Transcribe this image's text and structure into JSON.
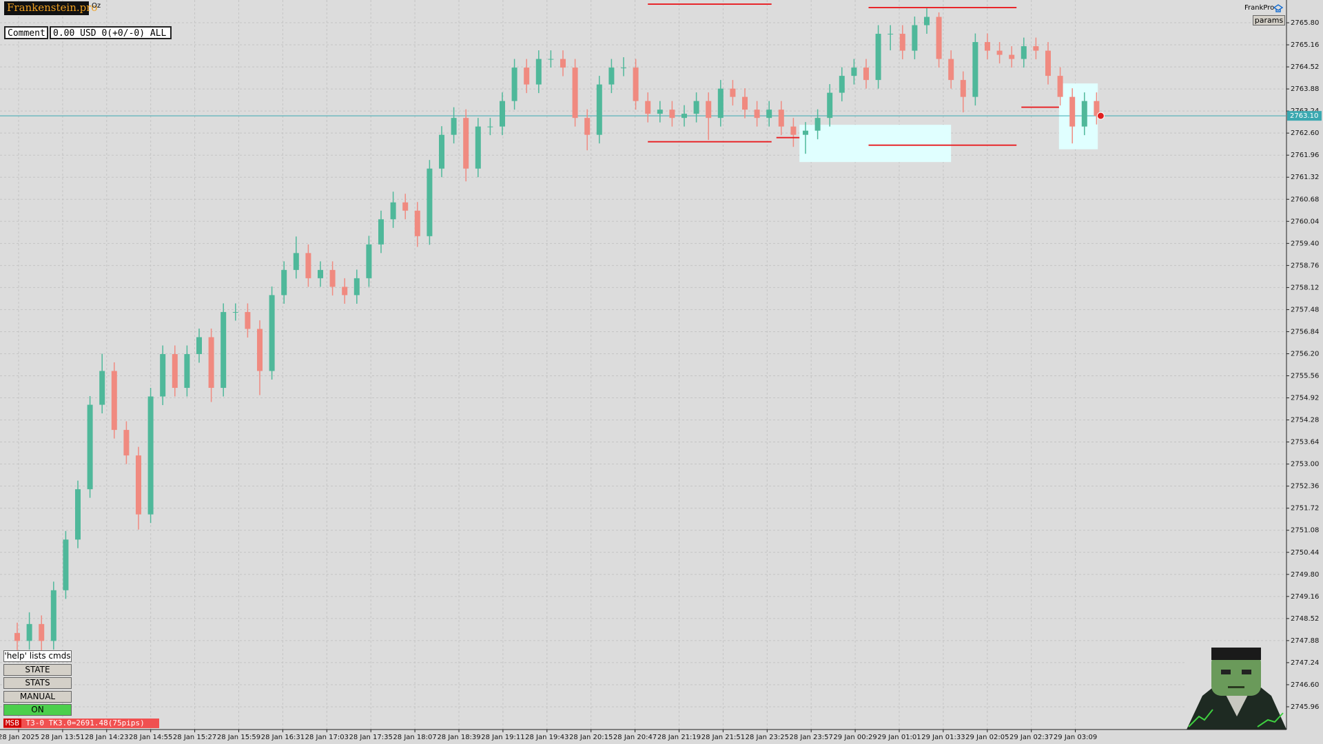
{
  "ui": {
    "logo": "Frankenstein.pro",
    "symbol_note": "Oz",
    "comment_label": "Comment",
    "account": "0.00 USD 0(+0/-0) ALL",
    "brand": "FrankPro",
    "params_button": "params",
    "help_hint": "'help' lists cmds",
    "buttons": [
      "STATE",
      "STATS",
      "MANUAL",
      "ON"
    ],
    "status_tag": "MSB",
    "status": "T3-0  TK3.0=2691.48(75pips)"
  },
  "chart_data": {
    "type": "candlestick",
    "up_color": "#4fb89a",
    "down_color": "#f08a80",
    "level_color": "#e8262a",
    "zone_color": "#e0ffff",
    "price_color": "#3aa8b0",
    "grid": true,
    "ylim": [
      2745.3,
      2766.46
    ],
    "yticks": [
      {
        "value": 2765.8,
        "label": "2765.80"
      },
      2765.16,
      2764.52,
      2763.88,
      2763.24,
      {
        "value": 2762.6,
        "label": "2762.60"
      },
      2761.96,
      2761.32,
      2760.68,
      2760.04,
      {
        "value": 2759.4,
        "label": "2759.40"
      },
      2758.76,
      2758.12,
      2757.48,
      2756.84,
      {
        "value": 2756.2,
        "label": "2756.20"
      },
      2755.56,
      2754.92,
      2754.28,
      2753.64,
      {
        "value": 2753.0,
        "label": "2753.00"
      },
      2752.36,
      2751.72,
      2751.08,
      2750.44,
      {
        "value": 2749.8,
        "label": "2749.80"
      },
      2749.16,
      2748.52,
      2747.88,
      2747.24,
      {
        "value": 2746.6,
        "label": "2746.60"
      },
      2745.96
    ],
    "x_labels": [
      "28 Jan 2025",
      "28 Jan 13:51",
      "28 Jan 14:23",
      "28 Jan 14:55",
      "28 Jan 15:27",
      "28 Jan 15:59",
      "28 Jan 16:31",
      "28 Jan 17:03",
      "28 Jan 17:35",
      "28 Jan 18:07",
      "28 Jan 18:39",
      "28 Jan 19:11",
      "28 Jan 19:43",
      "28 Jan 20:15",
      "28 Jan 20:47",
      "28 Jan 21:19",
      "28 Jan 21:51",
      "28 Jan 23:25",
      "28 Jan 23:57",
      "29 Jan 00:29",
      "29 Jan 01:01",
      "29 Jan 01:33",
      "29 Jan 02:05",
      "29 Jan 02:37",
      "29 Jan 03:09"
    ],
    "current_price": {
      "value": 2763.1,
      "label": "2763.10"
    },
    "ohlc": [
      [
        2748.1,
        2748.4,
        2747.6,
        2747.87
      ],
      [
        2747.87,
        2748.7,
        2747.62,
        2748.36
      ],
      [
        2748.36,
        2748.61,
        2747.4,
        2747.87
      ],
      [
        2747.87,
        2749.59,
        2747.62,
        2749.34
      ],
      [
        2749.34,
        2751.06,
        2749.09,
        2750.81
      ],
      [
        2750.81,
        2752.52,
        2750.56,
        2752.27
      ],
      [
        2752.27,
        2754.97,
        2752.02,
        2754.72
      ],
      [
        2754.72,
        2756.2,
        2754.47,
        2755.7
      ],
      [
        2755.7,
        2755.95,
        2753.74,
        2753.99
      ],
      [
        2753.99,
        2754.24,
        2753.0,
        2753.25
      ],
      [
        2753.25,
        2753.5,
        2751.1,
        2751.54
      ],
      [
        2751.54,
        2755.21,
        2751.29,
        2754.96
      ],
      [
        2754.96,
        2756.44,
        2754.71,
        2756.19
      ],
      [
        2756.19,
        2756.44,
        2754.96,
        2755.21
      ],
      [
        2755.21,
        2756.44,
        2754.96,
        2756.19
      ],
      [
        2756.19,
        2756.93,
        2755.94,
        2756.68
      ],
      [
        2756.68,
        2756.93,
        2754.8,
        2755.21
      ],
      [
        2755.21,
        2757.66,
        2754.96,
        2757.41
      ],
      [
        2757.41,
        2757.66,
        2757.16,
        2757.41
      ],
      [
        2757.41,
        2757.66,
        2756.67,
        2756.92
      ],
      [
        2756.92,
        2757.17,
        2755.0,
        2755.7
      ],
      [
        2755.7,
        2758.15,
        2755.45,
        2757.9
      ],
      [
        2757.9,
        2758.88,
        2757.65,
        2758.63
      ],
      [
        2758.63,
        2759.6,
        2758.38,
        2759.12
      ],
      [
        2759.12,
        2759.37,
        2758.14,
        2758.39
      ],
      [
        2758.39,
        2758.88,
        2758.14,
        2758.63
      ],
      [
        2758.63,
        2758.88,
        2757.89,
        2758.14
      ],
      [
        2758.14,
        2758.39,
        2757.65,
        2757.9
      ],
      [
        2757.9,
        2758.64,
        2757.65,
        2758.39
      ],
      [
        2758.39,
        2759.62,
        2758.14,
        2759.37
      ],
      [
        2759.37,
        2760.35,
        2759.12,
        2760.1
      ],
      [
        2760.1,
        2760.9,
        2759.85,
        2760.59
      ],
      [
        2760.59,
        2760.84,
        2760.1,
        2760.35
      ],
      [
        2760.35,
        2760.6,
        2759.3,
        2759.61
      ],
      [
        2759.61,
        2761.82,
        2759.36,
        2761.57
      ],
      [
        2761.57,
        2762.8,
        2761.32,
        2762.55
      ],
      [
        2762.55,
        2763.35,
        2762.3,
        2763.04
      ],
      [
        2763.04,
        2763.29,
        2761.2,
        2761.57
      ],
      [
        2761.57,
        2763.04,
        2761.32,
        2762.79
      ],
      [
        2762.79,
        2763.04,
        2762.54,
        2762.79
      ],
      [
        2762.79,
        2763.78,
        2762.54,
        2763.53
      ],
      [
        2763.53,
        2764.75,
        2763.28,
        2764.5
      ],
      [
        2764.5,
        2764.75,
        2763.76,
        2764.01
      ],
      [
        2764.01,
        2765.0,
        2763.76,
        2764.75
      ],
      [
        2764.75,
        2765.0,
        2764.5,
        2764.75
      ],
      [
        2764.75,
        2765.0,
        2764.25,
        2764.5
      ],
      [
        2764.5,
        2764.75,
        2762.79,
        2763.04
      ],
      [
        2763.04,
        2763.29,
        2762.1,
        2762.55
      ],
      [
        2762.55,
        2764.26,
        2762.3,
        2764.01
      ],
      [
        2764.01,
        2764.75,
        2763.76,
        2764.5
      ],
      [
        2764.5,
        2764.8,
        2764.25,
        2764.5
      ],
      [
        2764.5,
        2764.75,
        2763.28,
        2763.53
      ],
      [
        2763.53,
        2763.78,
        2762.91,
        2763.16
      ],
      [
        2763.16,
        2763.53,
        2762.91,
        2763.28
      ],
      [
        2763.28,
        2763.53,
        2762.79,
        2763.04
      ],
      [
        2763.04,
        2763.41,
        2762.79,
        2763.16
      ],
      [
        2763.16,
        2763.78,
        2762.91,
        2763.53
      ],
      [
        2763.53,
        2763.78,
        2762.4,
        2763.04
      ],
      [
        2763.04,
        2764.14,
        2762.79,
        2763.89
      ],
      [
        2763.89,
        2764.14,
        2763.4,
        2763.65
      ],
      [
        2763.65,
        2763.9,
        2763.03,
        2763.28
      ],
      [
        2763.28,
        2763.53,
        2762.79,
        2763.04
      ],
      [
        2763.04,
        2763.53,
        2762.79,
        2763.28
      ],
      [
        2763.28,
        2763.53,
        2762.54,
        2762.79
      ],
      [
        2762.79,
        2763.04,
        2762.2,
        2762.55
      ],
      [
        2762.55,
        2762.92,
        2762.0,
        2762.67
      ],
      [
        2762.67,
        2763.29,
        2762.42,
        2763.04
      ],
      [
        2763.04,
        2764.02,
        2762.79,
        2763.77
      ],
      [
        2763.77,
        2764.51,
        2763.52,
        2764.26
      ],
      [
        2764.26,
        2764.75,
        2764.01,
        2764.5
      ],
      [
        2764.5,
        2764.75,
        2763.89,
        2764.14
      ],
      [
        2764.14,
        2765.73,
        2763.89,
        2765.48
      ],
      [
        2765.48,
        2765.73,
        2765.0,
        2765.48
      ],
      [
        2765.48,
        2765.73,
        2764.74,
        2764.99
      ],
      [
        2764.99,
        2765.98,
        2764.74,
        2765.73
      ],
      [
        2765.73,
        2766.22,
        2765.48,
        2765.97
      ],
      [
        2765.97,
        2766.1,
        2764.5,
        2764.75
      ],
      [
        2764.75,
        2765.0,
        2763.89,
        2764.14
      ],
      [
        2764.14,
        2764.39,
        2763.2,
        2763.65
      ],
      [
        2763.65,
        2765.49,
        2763.4,
        2765.24
      ],
      [
        2765.24,
        2765.49,
        2764.74,
        2764.99
      ],
      [
        2764.99,
        2765.24,
        2764.62,
        2764.87
      ],
      [
        2764.87,
        2765.12,
        2764.5,
        2764.75
      ],
      [
        2764.75,
        2765.37,
        2764.5,
        2765.12
      ],
      [
        2765.12,
        2765.37,
        2764.74,
        2764.99
      ],
      [
        2764.99,
        2765.24,
        2764.01,
        2764.26
      ],
      [
        2764.26,
        2764.51,
        2763.4,
        2763.65
      ],
      [
        2763.65,
        2763.9,
        2762.3,
        2762.79
      ],
      [
        2762.79,
        2763.78,
        2762.54,
        2763.53
      ],
      [
        2763.53,
        2763.78,
        2762.85,
        2763.1
      ]
    ],
    "levels": [
      {
        "price": 2766.34,
        "from": 52,
        "to": 62.2
      },
      {
        "price": 2766.24,
        "from": 70.2,
        "to": 82.4
      },
      {
        "price": 2762.35,
        "from": 52,
        "to": 62.2
      },
      {
        "price": 2762.47,
        "from": 62.6,
        "to": 64.5
      },
      {
        "price": 2762.25,
        "from": 70.2,
        "to": 82.4
      },
      {
        "price": 2763.35,
        "from": 82.8,
        "to": 85.9
      }
    ],
    "zones": [
      {
        "from": 64.5,
        "to": 77,
        "low": 2761.76,
        "high": 2762.84
      },
      {
        "from": 85.9,
        "to": 89.1,
        "low": 2762.13,
        "high": 2764.04
      }
    ]
  }
}
